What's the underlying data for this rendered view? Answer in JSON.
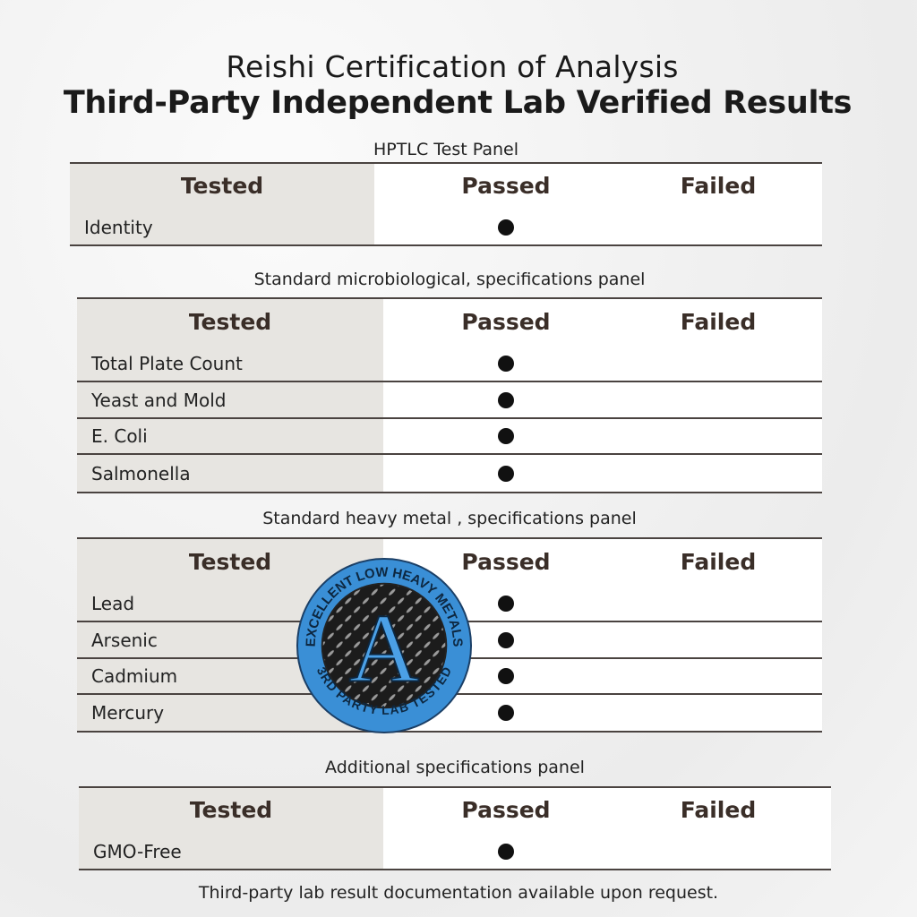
{
  "title": "Reishi Certification of Analysis",
  "subtitle": "Third-Party Independent Lab Verified Results",
  "columns": {
    "tested": "Tested",
    "passed": "Passed",
    "failed": "Failed"
  },
  "tables": [
    {
      "caption": "HPTLC Test Panel",
      "rows": [
        {
          "label": "Identity",
          "result": "passed"
        }
      ]
    },
    {
      "caption": "Standard microbiological, specifications panel",
      "rows": [
        {
          "label": "Total Plate Count",
          "result": "passed"
        },
        {
          "label": "Yeast and Mold",
          "result": "passed"
        },
        {
          "label": "E. Coli",
          "result": "passed"
        },
        {
          "label": "Salmonella",
          "result": "passed"
        }
      ]
    },
    {
      "caption": "Standard heavy metal , specifications panel",
      "rows": [
        {
          "label": "Lead",
          "result": "passed"
        },
        {
          "label": "Arsenic",
          "result": "passed"
        },
        {
          "label": "Cadmium",
          "result": "passed"
        },
        {
          "label": "Mercury",
          "result": "passed"
        }
      ]
    },
    {
      "caption": "Additional specifications panel",
      "rows": [
        {
          "label": "GMO-Free",
          "result": "passed"
        }
      ]
    }
  ],
  "badge": {
    "letter": "A",
    "top_text": "EXCELLENT LOW HEAVY METALS",
    "bottom_text": "3RD PARTY LAB TESTED",
    "color": "#3a8fd6"
  },
  "footer": "Third-party lab result documentation available upon request.",
  "colors": {
    "header_shade": "#e7e5e1",
    "rule": "#4a4340",
    "header_text": "#3a2e28"
  }
}
